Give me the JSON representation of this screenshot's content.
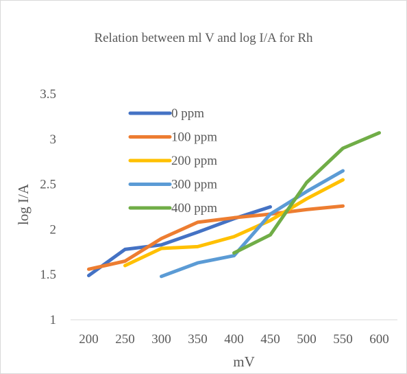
{
  "chart_data": {
    "type": "line",
    "title": "Relation between ml V and log I/A for Rh",
    "xlabel": "mV",
    "ylabel": "log I/A",
    "categories": [
      "200",
      "250",
      "300",
      "350",
      "400",
      "450",
      "500",
      "550",
      "600"
    ],
    "ylim": [
      1,
      3.5
    ],
    "yticks": [
      "1",
      "1.5",
      "2",
      "2.5",
      "3",
      "3.5"
    ],
    "grid": false,
    "legend_position": "top-left",
    "series": [
      {
        "name": "0 ppm",
        "color": "#4472c4",
        "values": [
          1.49,
          1.78,
          1.83,
          1.97,
          2.12,
          2.25,
          null,
          null,
          null
        ]
      },
      {
        "name": "100 ppm",
        "color": "#ed7d31",
        "values": [
          1.56,
          1.65,
          1.9,
          2.08,
          2.13,
          2.17,
          2.22,
          2.26,
          null
        ]
      },
      {
        "name": "200 ppm",
        "color": "#ffc000",
        "values": [
          null,
          1.6,
          1.79,
          1.81,
          1.92,
          2.1,
          2.34,
          2.55,
          null
        ]
      },
      {
        "name": "300 ppm",
        "color": "#5b9bd5",
        "values": [
          null,
          null,
          1.48,
          1.63,
          1.71,
          2.17,
          2.42,
          2.65,
          null
        ]
      },
      {
        "name": "400 ppm",
        "color": "#70ad47",
        "values": [
          null,
          null,
          null,
          null,
          1.74,
          1.94,
          2.52,
          2.9,
          3.07
        ]
      }
    ]
  }
}
